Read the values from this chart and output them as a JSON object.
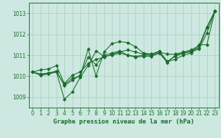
{
  "background_color": "#cce8e0",
  "grid_color": "#aaccbb",
  "line_color": "#1a6b2a",
  "xlim": [
    -0.5,
    23.5
  ],
  "ylim": [
    1008.5,
    1013.5
  ],
  "yticks": [
    1009,
    1010,
    1011,
    1012,
    1013
  ],
  "xticks": [
    0,
    1,
    2,
    3,
    4,
    5,
    6,
    7,
    8,
    9,
    10,
    11,
    12,
    13,
    14,
    15,
    16,
    17,
    18,
    19,
    20,
    21,
    22,
    23
  ],
  "xlabel": "Graphe pression niveau de la mer (hPa)",
  "series": [
    [
      1010.2,
      1010.3,
      1010.35,
      1010.5,
      1009.65,
      1010.05,
      1010.2,
      1010.6,
      1010.8,
      1010.9,
      1011.05,
      1011.15,
      1011.25,
      1011.15,
      1011.05,
      1011.05,
      1011.15,
      1011.05,
      1011.05,
      1011.15,
      1011.25,
      1011.45,
      1012.35,
      1013.1
    ],
    [
      1010.2,
      1010.1,
      1010.15,
      1010.2,
      1009.6,
      1009.9,
      1010.0,
      1011.3,
      1010.0,
      1011.15,
      1011.55,
      1011.65,
      1011.6,
      1011.4,
      1011.1,
      1011.05,
      1011.2,
      1010.7,
      1010.8,
      1011.0,
      1011.1,
      1011.5,
      1011.5,
      1013.1
    ],
    [
      1010.2,
      1010.05,
      1010.1,
      1010.2,
      1008.9,
      1009.25,
      1009.95,
      1010.5,
      1011.2,
      1010.95,
      1011.0,
      1011.1,
      1011.0,
      1010.9,
      1010.95,
      1010.95,
      1011.1,
      1010.7,
      1010.95,
      1011.1,
      1011.15,
      1011.3,
      1012.05,
      1013.1
    ],
    [
      1010.2,
      1010.05,
      1010.15,
      1010.25,
      1009.55,
      1009.8,
      1010.05,
      1010.9,
      1010.55,
      1011.0,
      1011.1,
      1011.2,
      1011.0,
      1010.95,
      1011.0,
      1011.0,
      1011.1,
      1010.65,
      1011.0,
      1011.1,
      1011.2,
      1011.35,
      1012.3,
      1013.1
    ]
  ],
  "marker": "D",
  "marker_size": 2.5,
  "line_width": 0.8,
  "xlabel_fontsize": 6.5,
  "tick_fontsize": 5.5
}
